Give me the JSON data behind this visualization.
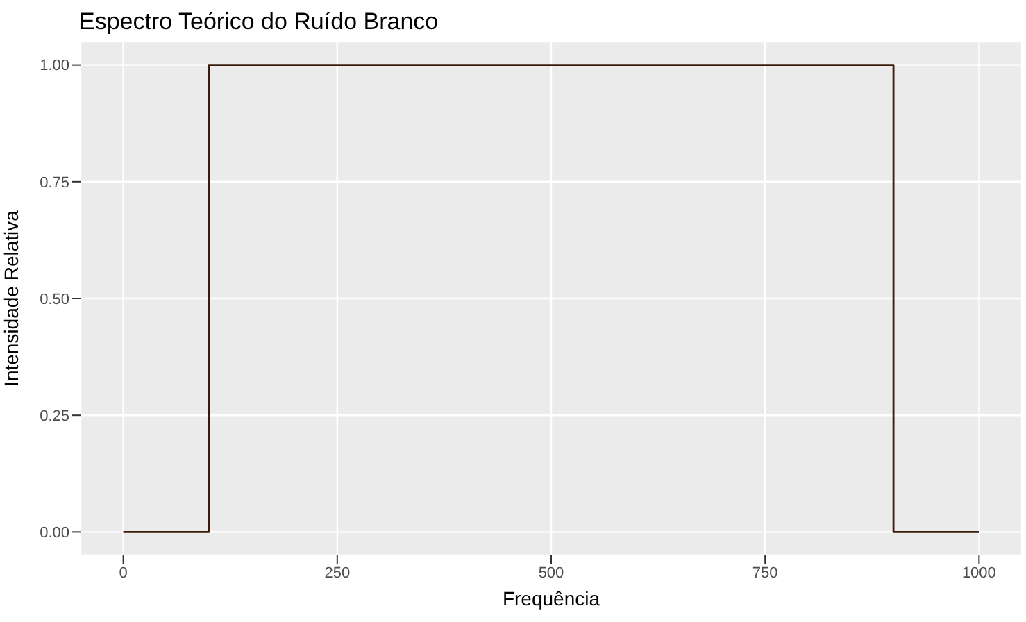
{
  "chart_data": {
    "type": "line",
    "title": "Espectro Teórico do Ruído Branco",
    "xlabel": "Frequência",
    "ylabel": "Intensidade Relativa",
    "x": [
      0,
      100,
      100,
      900,
      900,
      1000
    ],
    "series": [
      {
        "color": "#3b1a0a",
        "values": [
          0,
          0,
          1,
          1,
          0,
          0
        ]
      }
    ],
    "xlim": [
      -50,
      1050
    ],
    "xticks": [
      0,
      250,
      500,
      750,
      1000
    ],
    "ylim": [
      -0.05,
      1.05
    ],
    "yticks": [
      {
        "value": 0,
        "label": "0.00"
      },
      {
        "value": 0.25,
        "label": "0.25"
      },
      {
        "value": 0.5,
        "label": "0.50"
      },
      {
        "value": 0.75,
        "label": "0.75"
      },
      {
        "value": 1,
        "label": "1.00"
      }
    ],
    "grid": true,
    "marker": "none",
    "line_style": "solid"
  }
}
